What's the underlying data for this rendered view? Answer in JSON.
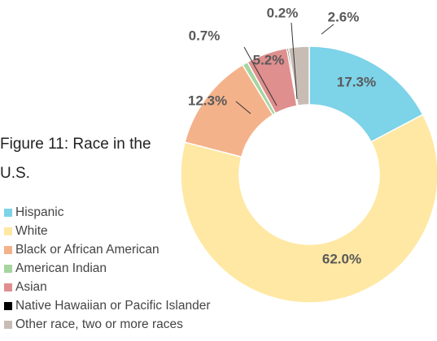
{
  "chart_data": {
    "type": "donut",
    "title": "Figure 11: Race in the U.S.",
    "categories": [
      "Hispanic",
      "White",
      "Black or African American",
      "American Indian",
      "Asian",
      "Native Hawaiian or Pacific Islander",
      "Other race, two or more races"
    ],
    "values": [
      17.3,
      62.0,
      12.3,
      0.7,
      5.2,
      0.2,
      2.6
    ],
    "value_labels": [
      "17.3%",
      "62.0%",
      "12.3%",
      "0.7%",
      "5.2%",
      "0.2%",
      "2.6%"
    ],
    "colors": [
      "#7dd3e8",
      "#ffe8a3",
      "#f4b28b",
      "#a6d5a0",
      "#df8f8e",
      "#000000",
      "#c8bdb5"
    ],
    "legend": "bottom-left"
  }
}
